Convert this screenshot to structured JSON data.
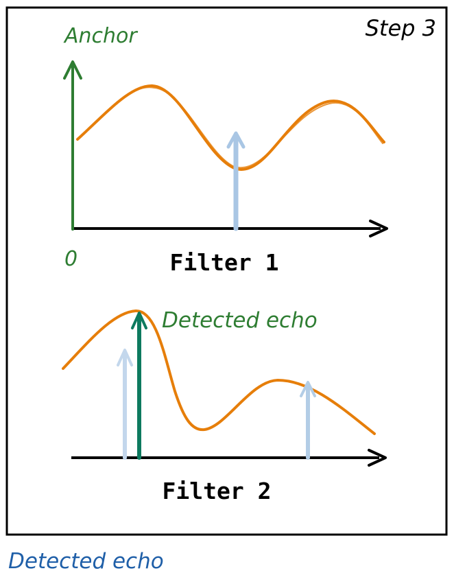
{
  "frame": {
    "step_label": "Step 3"
  },
  "filter1": {
    "caption": "Filter 1",
    "anchor_label": "Anchor",
    "origin_label": "0"
  },
  "filter2": {
    "caption": "Filter 2",
    "detected_label": "Detected echo"
  },
  "footer": {
    "detected_label": "Detected echo"
  },
  "colors": {
    "frame": "#000000",
    "curve": "#e67e0a",
    "anchor": "#2e7d32",
    "detected": "#0d7a5f",
    "candidate": "#a9c6e4",
    "footer_text": "#1f5fa8"
  }
}
